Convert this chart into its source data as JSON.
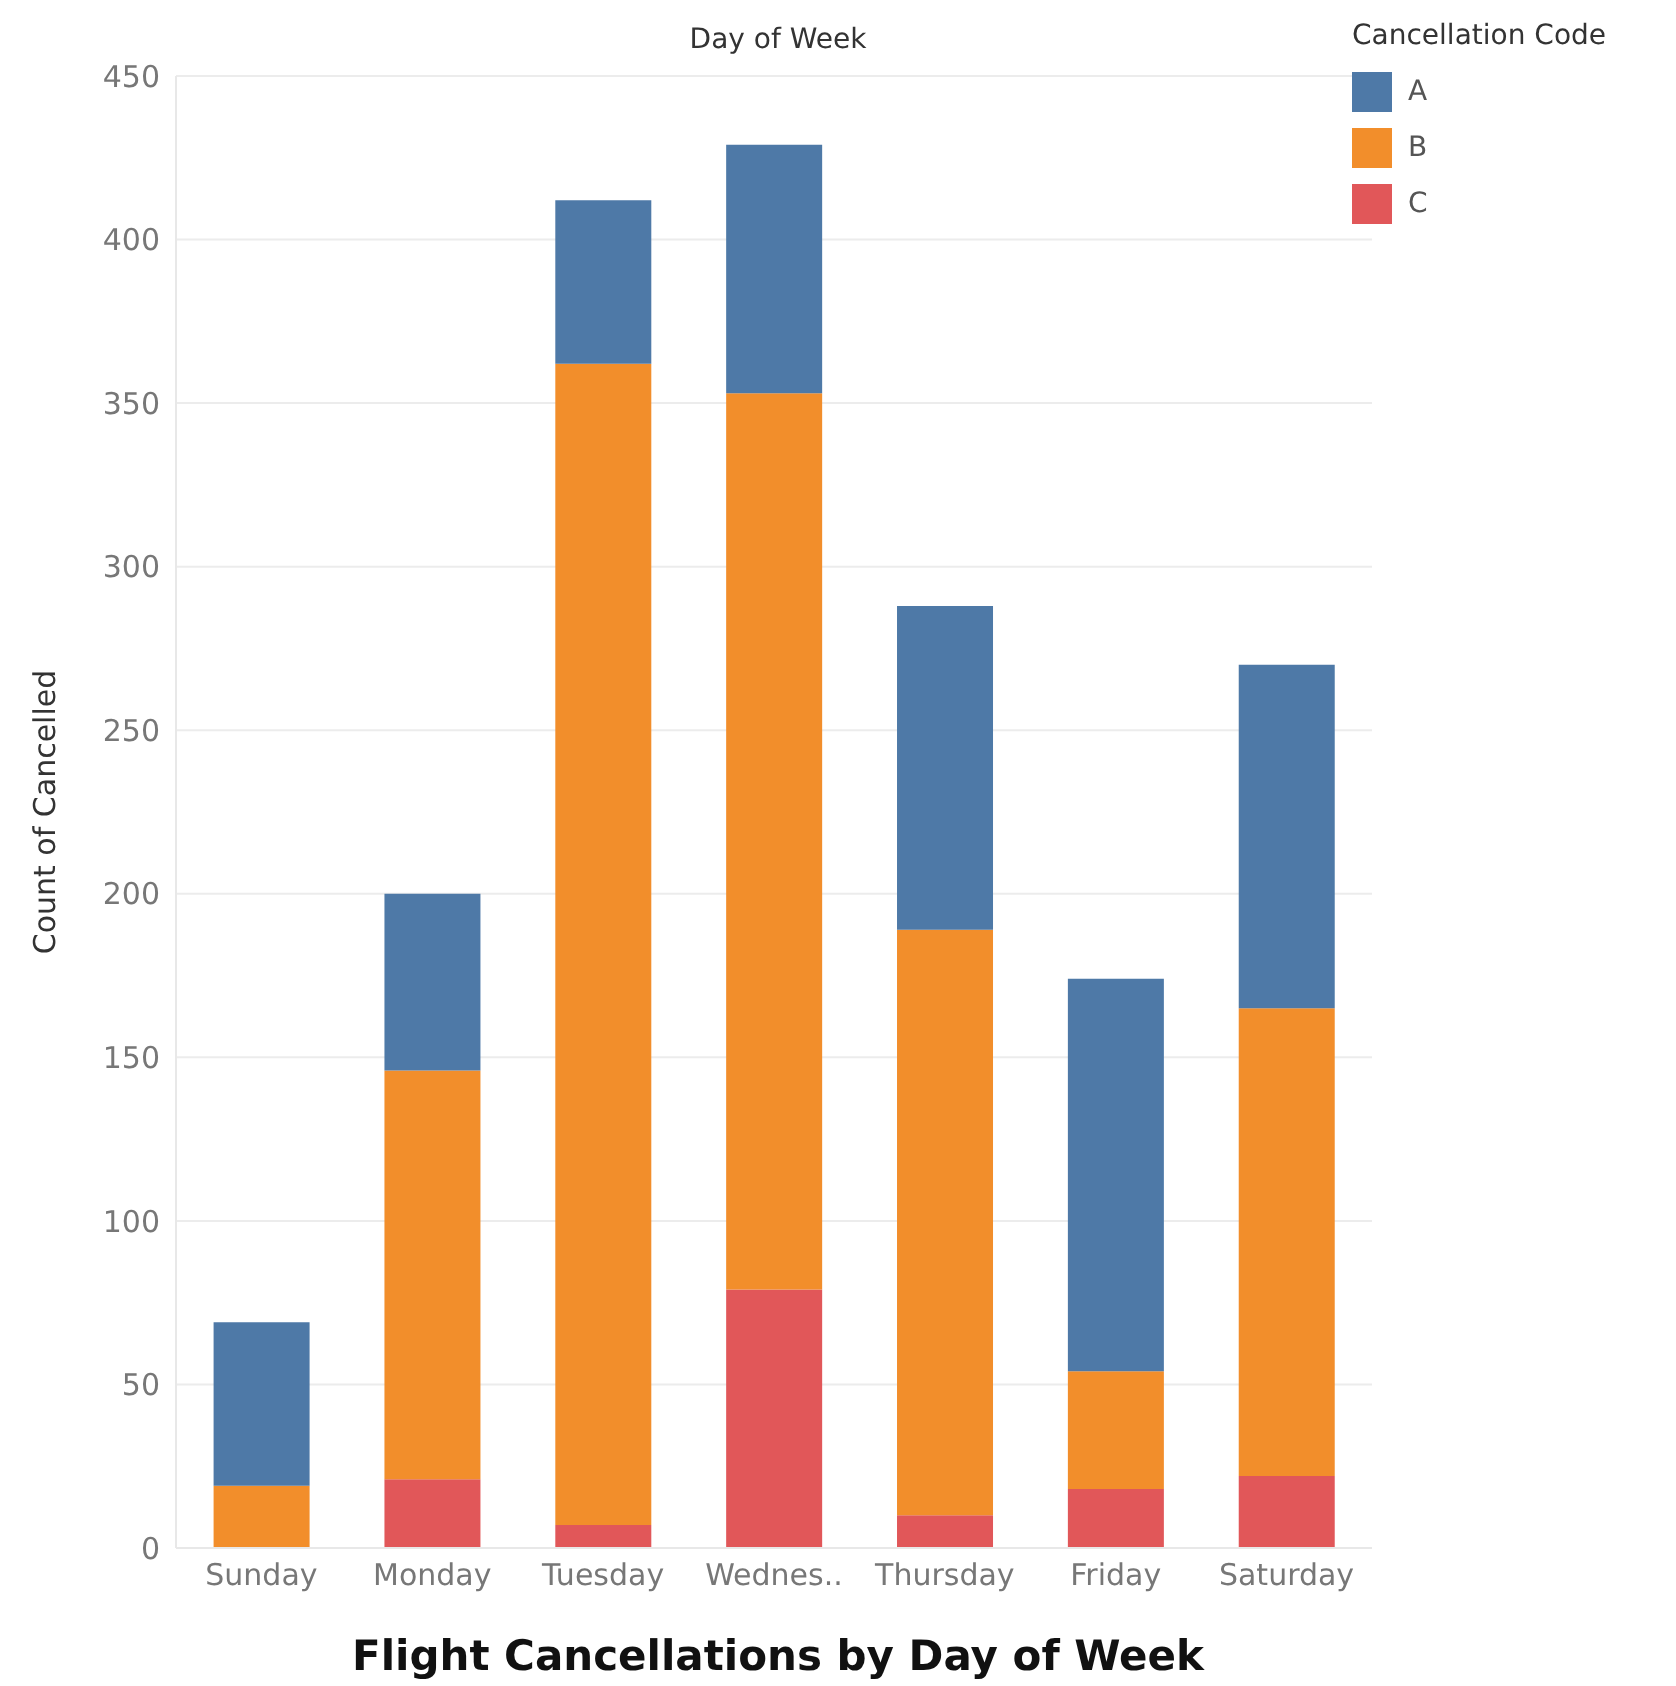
{
  "chart_data": {
    "type": "bar",
    "title": "Flight Cancellations by Day of Week",
    "xlabel": "Day of Week",
    "ylabel": "Count of Cancelled",
    "legend_title": "Cancellation Code",
    "categories": [
      "Sunday",
      "Monday",
      "Tuesday",
      "Wednes..",
      "Thursday",
      "Friday",
      "Saturday"
    ],
    "stacked": true,
    "series": [
      {
        "name": "C",
        "color": "#e15759",
        "values": [
          0,
          21,
          7,
          79,
          10,
          18,
          22
        ]
      },
      {
        "name": "B",
        "color": "#f28e2b",
        "values": [
          19,
          125,
          355,
          274,
          179,
          36,
          143
        ]
      },
      {
        "name": "A",
        "color": "#4e79a7",
        "values": [
          50,
          54,
          50,
          76,
          99,
          120,
          105
        ]
      }
    ],
    "ylim": [
      0,
      450
    ],
    "yticks": [
      0,
      50,
      100,
      150,
      200,
      250,
      300,
      350,
      400,
      450
    ],
    "grid": "y",
    "legend": "top right"
  }
}
